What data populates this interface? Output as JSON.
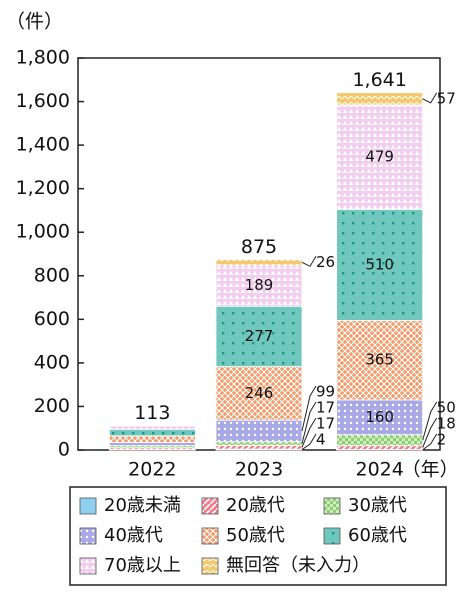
{
  "chart_data": {
    "type": "stacked_bar",
    "y_unit": "（件）",
    "x_unit": "（年）",
    "categories": [
      "2022",
      "2023",
      "2024"
    ],
    "ylim": [
      0,
      1800
    ],
    "yticks": [
      0,
      200,
      400,
      600,
      800,
      {
        "value": 1000,
        "label": "1,000"
      },
      {
        "value": 1200,
        "label": "1,200"
      },
      {
        "value": 1400,
        "label": "1,400"
      },
      {
        "value": 1600,
        "label": "1,600"
      },
      {
        "value": 1800,
        "label": "1,800"
      }
    ],
    "series": [
      {
        "name": "20歳未満",
        "color": "#8ecff0",
        "values": [
          2,
          4,
          2
        ],
        "value_labels": [
          null,
          "4",
          "2"
        ]
      },
      {
        "name": "20歳代",
        "color": "#f0808f",
        "values": [
          8,
          17,
          18
        ],
        "value_labels": [
          null,
          "17",
          "18"
        ]
      },
      {
        "name": "30歳代",
        "color": "#8ccf6e",
        "values": [
          10,
          17,
          50
        ],
        "value_labels": [
          null,
          "17",
          "50"
        ]
      },
      {
        "name": "40歳代",
        "color": "#a9a9e6",
        "values": [
          15,
          99,
          160
        ],
        "value_labels": [
          null,
          "99",
          "160"
        ]
      },
      {
        "name": "50歳代",
        "color": "#f29a6a",
        "values": [
          30,
          246,
          365
        ],
        "value_labels": [
          null,
          "246",
          "365"
        ]
      },
      {
        "name": "60歳代",
        "color": "#6fc7bd",
        "values": [
          30,
          277,
          510
        ],
        "value_labels": [
          null,
          "277",
          "510"
        ]
      },
      {
        "name": "70歳以上",
        "color": "#f2cdef",
        "values": [
          15,
          189,
          479
        ],
        "value_labels": [
          null,
          "189",
          "479"
        ]
      },
      {
        "name": "無回答（未入力）",
        "color": "#f6c86e",
        "values": [
          3,
          26,
          57
        ],
        "value_labels": [
          null,
          "26",
          "57"
        ]
      }
    ],
    "totals": [
      113,
      875,
      1641
    ],
    "total_labels": [
      "113",
      "875",
      "1,641"
    ]
  }
}
